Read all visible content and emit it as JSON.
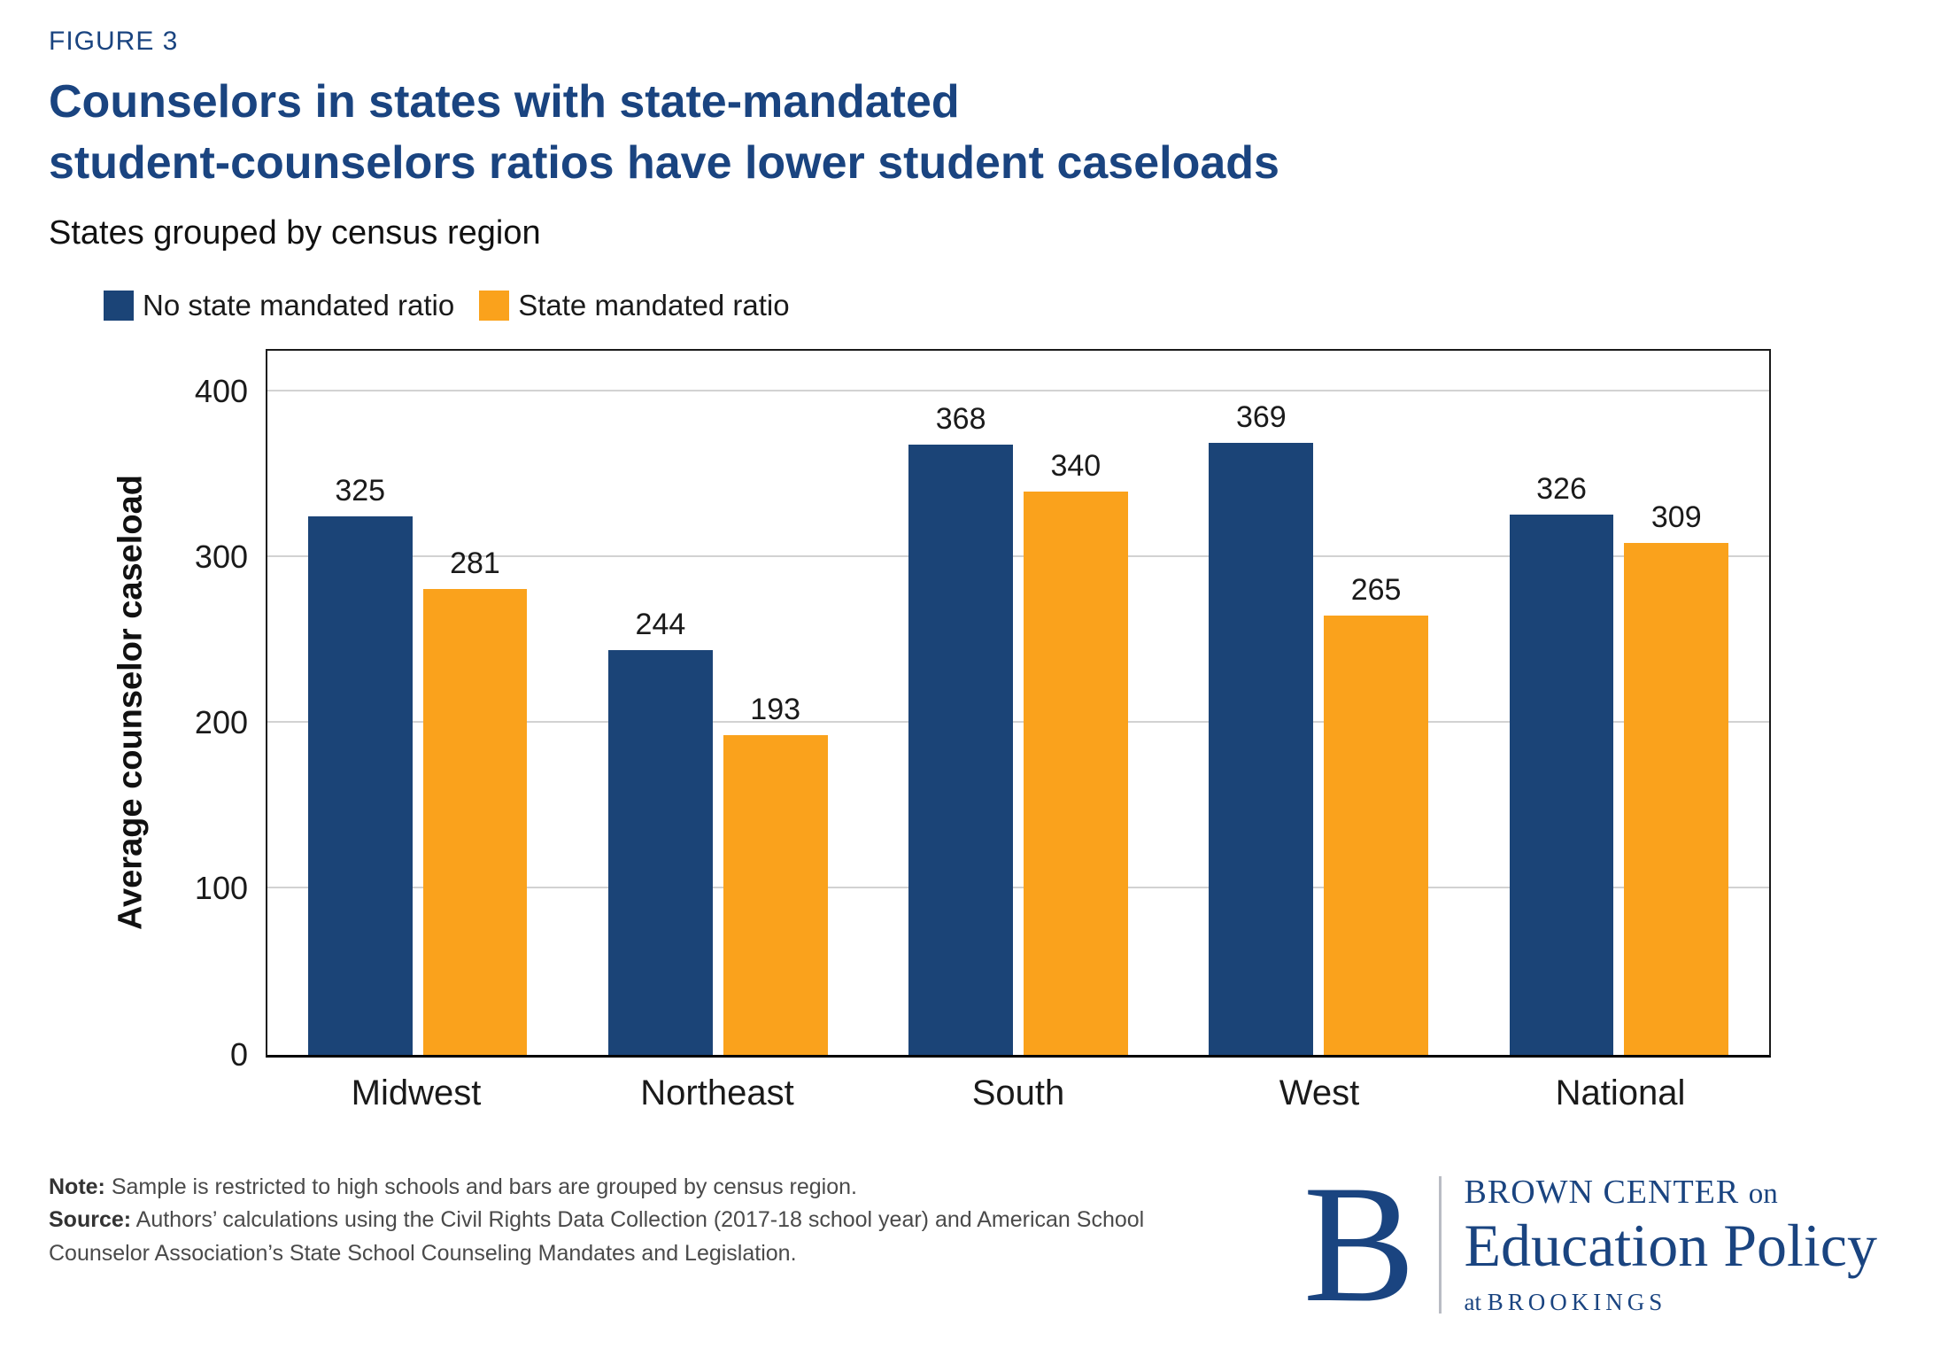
{
  "figure_label": "FIGURE 3",
  "title": {
    "line1": "Counselors in states with state-mandated",
    "line2": "student-counselors ratios have lower student caseloads"
  },
  "subtitle": "States grouped by census region",
  "chart_data": {
    "type": "bar",
    "categories": [
      "Midwest",
      "Northeast",
      "South",
      "West",
      "National"
    ],
    "series": [
      {
        "name": "No state mandated ratio",
        "color": "#1B4477",
        "values": [
          325,
          244,
          368,
          369,
          326
        ]
      },
      {
        "name": "State mandated ratio",
        "color": "#FAA21C",
        "values": [
          281,
          193,
          340,
          265,
          309
        ]
      }
    ],
    "title": "Counselors in states with state-mandated student-counselors ratios have lower student caseloads",
    "xlabel": "",
    "ylabel": "Average counselor caseload",
    "ylim": [
      0,
      400
    ],
    "yticks": [
      0,
      100,
      200,
      300,
      400
    ],
    "grid": true,
    "legend_position": "top-left",
    "bar_value_labels": true
  },
  "footer": {
    "note_label": "Note:",
    "note_text": " Sample is restricted to high schools and bars are grouped by census region.",
    "source_label": "Source:",
    "source_text": " Authors’ calculations using the Civil Rights Data Collection (2017-18 school year) and American School Counselor Association’s State School Counseling Mandates and Legislation."
  },
  "logo": {
    "letter": "B",
    "line1_caps": "BROWN CENTER ",
    "line1_small": "on",
    "line2": "Education Policy",
    "line3_small": "at ",
    "line3_caps": "BROOKINGS"
  },
  "colors": {
    "navy": "#1B4477",
    "orange": "#FAA21C",
    "title_navy": "#1A4480",
    "logo_navy": "#1A4480",
    "gridline": "#d2d2d2",
    "frame": "#1a1a1a"
  }
}
